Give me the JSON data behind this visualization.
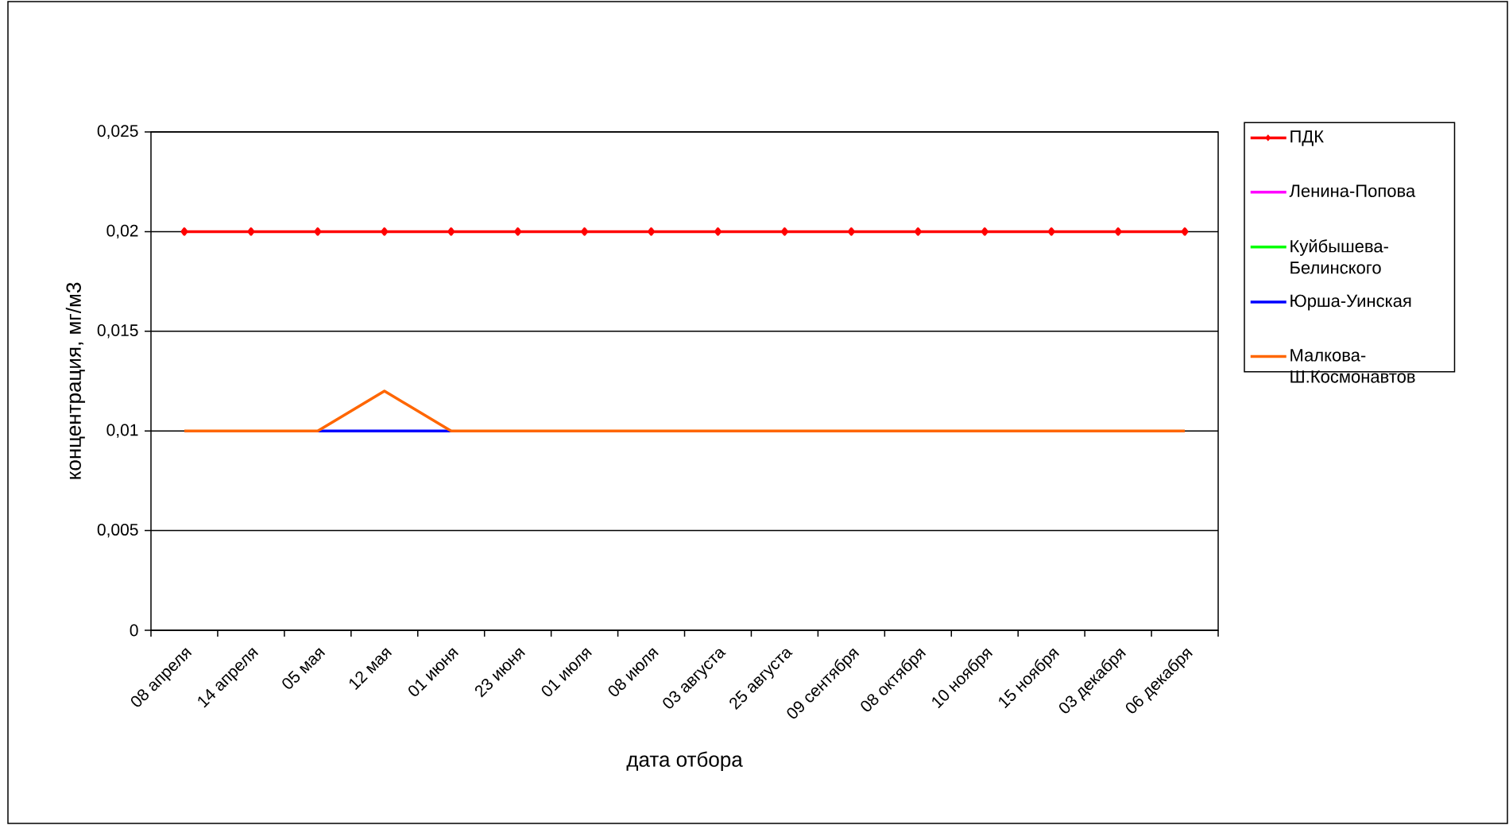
{
  "chart_data": {
    "type": "line",
    "xlabel": "дата отбора",
    "ylabel": "концентрация, мг/м3",
    "categories": [
      "08 апреля",
      "14 апреля",
      "05 мая",
      "12 мая",
      "01 июня",
      "23 июня",
      "01 июля",
      "08 июля",
      "03 августа",
      "25 августа",
      "09 сентября",
      "08 октября",
      "10 ноября",
      "15 ноября",
      "03 декабря",
      "06 декабря"
    ],
    "series": [
      {
        "name": "ПДК",
        "color": "#ff0000",
        "marker": "diamond",
        "values": [
          0.02,
          0.02,
          0.02,
          0.02,
          0.02,
          0.02,
          0.02,
          0.02,
          0.02,
          0.02,
          0.02,
          0.02,
          0.02,
          0.02,
          0.02,
          0.02
        ]
      },
      {
        "name": "Ленина-Попова",
        "color": "#ff00ff",
        "values": [
          null,
          null,
          null,
          null,
          null,
          null,
          null,
          null,
          null,
          null,
          null,
          null,
          null,
          null,
          null,
          null
        ]
      },
      {
        "name": "Куйбышева-Белинского",
        "color": "#00ff00",
        "values": [
          null,
          null,
          null,
          null,
          null,
          null,
          null,
          null,
          null,
          null,
          null,
          null,
          null,
          null,
          null,
          null
        ]
      },
      {
        "name": "Юрша-Уинская",
        "color": "#0000ff",
        "values": [
          null,
          null,
          0.01,
          0.01,
          0.01,
          null,
          null,
          null,
          null,
          null,
          null,
          null,
          null,
          null,
          null,
          null
        ]
      },
      {
        "name": "Малкова-Ш.Космонавтов",
        "color": "#ff6600",
        "values": [
          0.01,
          0.01,
          0.01,
          0.012,
          0.01,
          0.01,
          0.01,
          0.01,
          0.01,
          0.01,
          0.01,
          0.01,
          0.01,
          0.01,
          0.01,
          0.01
        ]
      }
    ],
    "ylim": [
      0,
      0.025
    ],
    "yticks": [
      0,
      {
        "value": 0.005,
        "label": "0,005"
      },
      {
        "value": 0.01,
        "label": "0,01"
      },
      {
        "value": 0.015,
        "label": "0,015"
      },
      {
        "value": 0.02,
        "label": "0,02"
      },
      {
        "value": 0.025,
        "label": "0,025"
      }
    ],
    "grid": "y",
    "legend": "right",
    "line_style": "solid"
  }
}
